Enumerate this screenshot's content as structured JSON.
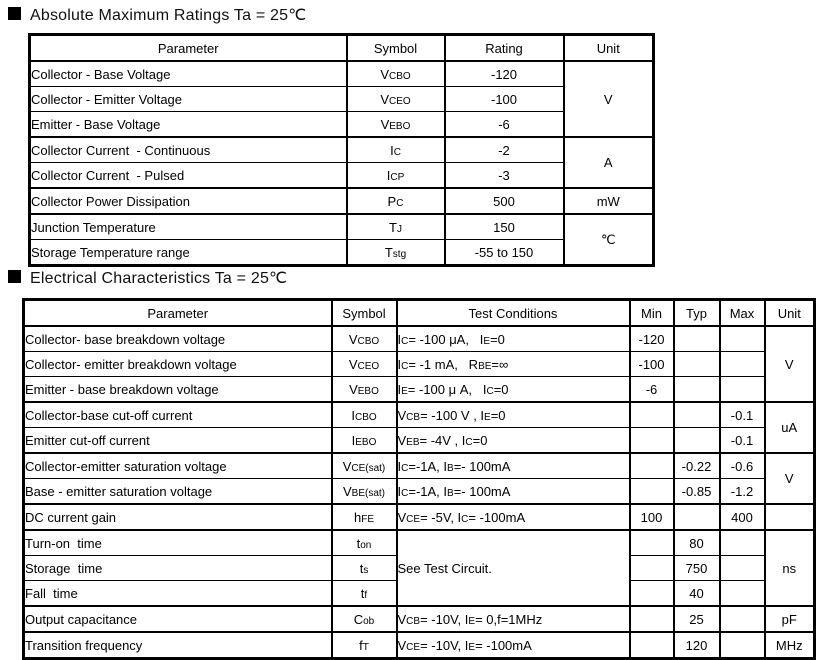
{
  "sections": {
    "abs": {
      "title": "Absolute Maximum Ratings Ta = 25℃",
      "headers": {
        "parameter": "Parameter",
        "symbol": "Symbol",
        "rating": "Rating",
        "unit": "Unit"
      },
      "rows": [
        {
          "p": "Collector - Base Voltage",
          "s": "V~CBO~",
          "r": "-120",
          "u": "V"
        },
        {
          "p": "Collector - Emitter Voltage",
          "s": "V~CEO~",
          "r": "-100"
        },
        {
          "p": "Emitter - Base Voltage",
          "s": "V~EBO~",
          "r": "-6"
        },
        {
          "p": "Collector Current  - Continuous",
          "s": "I~C~",
          "r": "-2",
          "u": "A"
        },
        {
          "p": "Collector Current  - Pulsed",
          "s": "I~CP~",
          "r": "-3"
        },
        {
          "p": "Collector Power Dissipation",
          "s": "P~C~",
          "r": "500",
          "u": "mW"
        },
        {
          "p": "Junction Temperature",
          "s": "T~J~",
          "r": "150",
          "u": "℃"
        },
        {
          "p": "Storage Temperature range",
          "s": "T~stg~",
          "r": "-55 to 150"
        }
      ]
    },
    "ec": {
      "title": "Electrical Characteristics Ta = 25℃",
      "headers": {
        "parameter": "Parameter",
        "symbol": "Symbol",
        "tc": "Test Conditions",
        "min": "Min",
        "typ": "Typ",
        "max": "Max",
        "unit": "Unit"
      },
      "rows": [
        {
          "p": "Collector- base breakdown voltage",
          "s": "V~CBO~",
          "tc": "I~C~= -100 μA,   I~E~=0",
          "min": "-120",
          "u": "V"
        },
        {
          "p": "Collector- emitter breakdown voltage",
          "s": "V~CEO~",
          "tc": "I~C~= -1 mA,   R~BE~=∞",
          "min": "-100"
        },
        {
          "p": "Emitter - base breakdown voltage",
          "s": "V~EBO~",
          "tc": "I~E~= -100 μ A,   I~C~=0",
          "min": "-6"
        },
        {
          "p": "Collector-base cut-off current",
          "s": "I~CBO~",
          "tc": "V~CB~= -100 V , I~E~=0",
          "max": "-0.1",
          "u": "uA"
        },
        {
          "p": "Emitter cut-off current",
          "s": "I~EBO~",
          "tc": "V~EB~= -4V , I~C~=0",
          "max": "-0.1"
        },
        {
          "p": "Collector-emitter saturation voltage",
          "s": "V~CE(sat)~",
          "tc": "I~C~=-1A, I~B~=- 100mA",
          "typ": "-0.22",
          "max": "-0.6",
          "u": "V"
        },
        {
          "p": "Base - emitter saturation voltage",
          "s": "V~BE(sat)~",
          "tc": "I~C~=-1A, I~B~=- 100mA",
          "typ": "-0.85",
          "max": "-1.2"
        },
        {
          "p": "DC current gain",
          "s": "h~FE~",
          "tc": "V~CE~= -5V, I~C~= -100mA",
          "min": "100",
          "max": "400",
          "u": ""
        },
        {
          "p": "Turn-on  time",
          "s": "t~on~",
          "tc": "See Test Circuit.",
          "typ": "80",
          "u": "ns"
        },
        {
          "p": "Storage  time",
          "s": "t~s~",
          "typ": "750"
        },
        {
          "p": "Fall  time",
          "s": "t~f~",
          "typ": "40"
        },
        {
          "p": "Output capacitance",
          "s": "C~ob~",
          "tc": "V~CB~= -10V, I~E~= 0,f=1MHz",
          "typ": "25",
          "u": "pF"
        },
        {
          "p": "Transition frequency",
          "s": "f~T~",
          "tc": "V~CE~= -10V, I~E~= -100mA",
          "typ": "120",
          "u": "MHz"
        }
      ]
    }
  }
}
